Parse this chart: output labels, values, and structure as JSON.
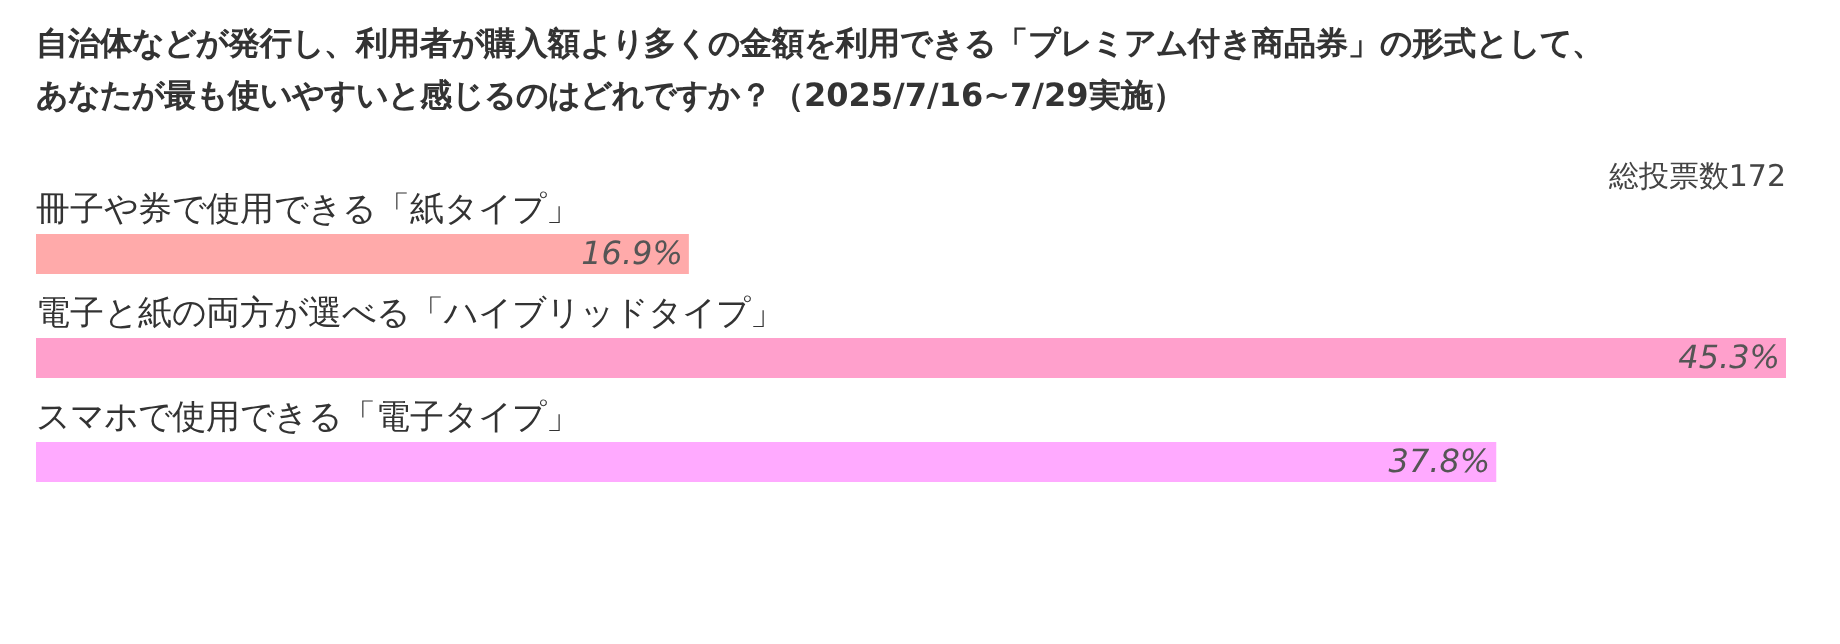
{
  "chart_data": {
    "type": "bar",
    "orientation": "horizontal",
    "title": [
      "自治体などが発行し、利用者が購入額より多くの金額を利用できる「プレミアム付き商品券」の形式として、",
      "あなたが最も使いやすいと感じるのはどれですか？（2025/7/16~7/29実施）"
    ],
    "annotations": [
      "総投票数172"
    ],
    "categories": [
      "冊子や券で使用できる「紙タイプ」",
      "電子と紙の両方が選べる「ハイブリッドタイプ」",
      "スマホで使用できる「電子タイプ」"
    ],
    "values": [
      16.9,
      45.3,
      37.8
    ],
    "value_labels": [
      "16.9%",
      "45.3%",
      "37.8%"
    ],
    "colors": [
      "#ffaaaa",
      "#ffa0cc",
      "#ffaaff"
    ]
  }
}
